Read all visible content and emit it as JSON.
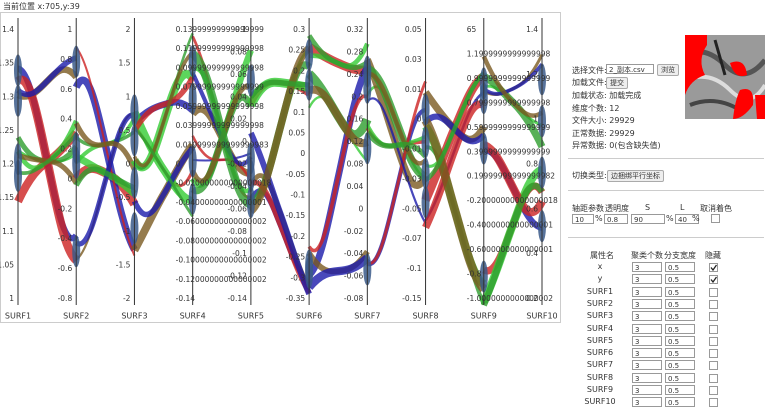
{
  "status": "当前位置 x:705,y:39",
  "plot": {
    "axes": [
      {
        "name": "SURF1",
        "ticks": [
          "1.4",
          "1.35",
          "1.3",
          "1.25",
          "1.2",
          "1.15",
          "1.1",
          "1.05",
          "1"
        ]
      },
      {
        "name": "SURF2",
        "ticks": [
          "1",
          "0.8",
          "0.6",
          "0.4",
          "0.2",
          "0",
          "-0.2",
          "-0.4",
          "-0.6",
          "-0.8"
        ]
      },
      {
        "name": "SURF3",
        "ticks": [
          "2",
          "1.5",
          "1",
          "0.5",
          "0",
          "-0.5",
          "-1",
          "-1.5",
          "-2"
        ]
      },
      {
        "name": "SURF4",
        "ticks": [
          "0.13999999999999999",
          "0.11999999999999998",
          "0.09999999999999998",
          "0.07999999999999999",
          "0.05999999999999998",
          "0.03999999999999998",
          "0.019999999999999983",
          "0",
          "-0.020000000000000018",
          "-0.04000000000000001",
          "-0.06000000000000002",
          "-0.08000000000000002",
          "-0.10000000000000002",
          "-0.12000000000000002",
          "-0.14"
        ]
      },
      {
        "name": "SURF5",
        "ticks": [
          "0.1",
          "0.08",
          "0.06",
          "0.04",
          "0.02",
          "0",
          "-0.02",
          "-0.04",
          "-0.06",
          "-0.08",
          "-0.1",
          "-0.12",
          "-0.14"
        ]
      },
      {
        "name": "SURF6",
        "ticks": [
          "0.3",
          "0.25",
          "0.2",
          "0.15",
          "0.1",
          "0.05",
          "0",
          "-0.05",
          "-0.1",
          "-0.15",
          "-0.2",
          "-0.25",
          "-0.3",
          "-0.35"
        ]
      },
      {
        "name": "SURF7",
        "ticks": [
          "0.32",
          "0.28",
          "0.24",
          "0.2",
          "0.16",
          "0.12",
          "0.08",
          "0.04",
          "0",
          "-0.02",
          "-0.04",
          "-0.06",
          "-0.08"
        ]
      },
      {
        "name": "SURF8",
        "ticks": [
          "0.05",
          "0.03",
          "0.01",
          "0",
          "-0.01",
          "-0.03",
          "-0.05",
          "-0.07",
          "-0.1",
          "-0.15"
        ]
      },
      {
        "name": "SURF9",
        "ticks": [
          "65",
          "1.1999999999999998",
          "0.9999999999999999",
          "0.7999999999999998",
          "0.5999999999999999",
          "0.3999999999999999",
          "0.19999999999999982",
          "-0.20000000000000018",
          "-0.4000000000000001",
          "-0.6000000000000001",
          "-0.8",
          "-1.0000000000000002"
        ]
      },
      {
        "name": "SURF10",
        "ticks": [
          "1.4",
          "1.2",
          "1",
          "0.8",
          "0.6",
          "0.4",
          "0.2"
        ]
      }
    ]
  },
  "panel": {
    "choose_file_label": "选择文件:",
    "file_name": "2_副本.csv",
    "browse": "浏览",
    "load_file_label": "加载文件:",
    "submit": "提交",
    "info": [
      "加载状态: 加载完成",
      "维度个数: 12",
      "文件大小: 29929",
      "正常数据: 29929",
      "异常数据: 0(包含缺失值)"
    ],
    "switch_label": "切换类型:",
    "switch_button": "边捆绑平行坐标",
    "params_headers": [
      "轴距参数",
      "透明度",
      "S",
      "L",
      "取消着色"
    ],
    "axis_gap": "10",
    "opacity": "0.8",
    "s": "90",
    "l": "40",
    "percent": "%",
    "table_headers": [
      "属性名",
      "聚类个数",
      "分支宽度",
      "隐藏"
    ],
    "rows": [
      {
        "name": "x",
        "clusters": "3",
        "width": "0.5",
        "hidden": true
      },
      {
        "name": "y",
        "clusters": "3",
        "width": "0.5",
        "hidden": true
      },
      {
        "name": "SURF1",
        "clusters": "3",
        "width": "0.5",
        "hidden": false
      },
      {
        "name": "SURF2",
        "clusters": "3",
        "width": "0.5",
        "hidden": false
      },
      {
        "name": "SURF3",
        "clusters": "3",
        "width": "0.5",
        "hidden": false
      },
      {
        "name": "SURF4",
        "clusters": "3",
        "width": "0.5",
        "hidden": false
      },
      {
        "name": "SURF5",
        "clusters": "3",
        "width": "0.5",
        "hidden": false
      },
      {
        "name": "SURF6",
        "clusters": "3",
        "width": "0.5",
        "hidden": false
      },
      {
        "name": "SURF7",
        "clusters": "3",
        "width": "0.5",
        "hidden": false
      },
      {
        "name": "SURF8",
        "clusters": "3",
        "width": "0.5",
        "hidden": false
      },
      {
        "name": "SURF9",
        "clusters": "3",
        "width": "0.5",
        "hidden": false
      },
      {
        "name": "SURF10",
        "clusters": "3",
        "width": "0.5",
        "hidden": false
      }
    ]
  }
}
